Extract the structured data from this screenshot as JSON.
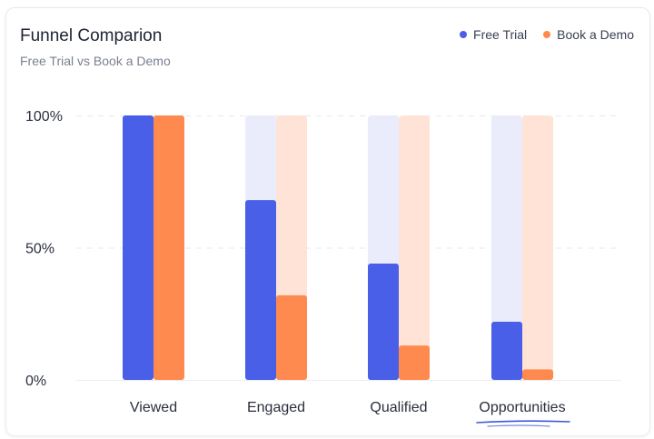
{
  "colors": {
    "free_trial": "#4a5fe8",
    "free_trial_track": "#eaecfb",
    "book_demo": "#ff8a50",
    "book_demo_track": "#ffe3d7",
    "underline": "#3f57d9"
  },
  "chart_data": {
    "type": "bar",
    "title": "Funnel Comparion",
    "subtitle": "Free Trial vs Book a Demo",
    "categories": [
      "Viewed",
      "Engaged",
      "Qualified",
      "Opportunities"
    ],
    "series": [
      {
        "name": "Free Trial",
        "values": [
          100,
          68,
          44,
          22
        ]
      },
      {
        "name": "Book a Demo",
        "values": [
          100,
          32,
          13,
          4
        ]
      }
    ],
    "yticks": [
      "100%",
      "50%",
      "0%"
    ],
    "ylim": [
      0,
      100
    ],
    "grid": true,
    "legend": "top-right"
  }
}
